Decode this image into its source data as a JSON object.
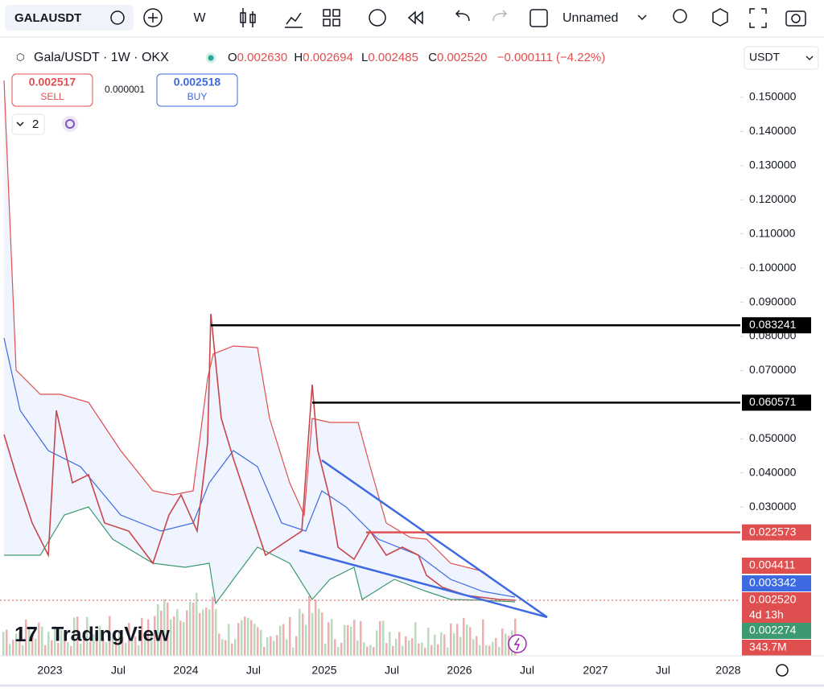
{
  "toolbar": {
    "symbol": "GALAUSDT",
    "interval": "W",
    "layout_name": "Unnamed"
  },
  "legend": {
    "title": "Gala/USDT · 1W · OKX",
    "open_key": "O",
    "open": "0.002630",
    "high_key": "H",
    "high": "0.002694",
    "low_key": "L",
    "low": "0.002485",
    "close_key": "C",
    "close": "0.002520",
    "change": "−0.000111 (−4.22%)"
  },
  "trade": {
    "sell_price": "0.002517",
    "sell": "SELL",
    "spread": "0.000001",
    "buy_price": "0.002518",
    "buy": "BUY"
  },
  "indicators": {
    "count": "2"
  },
  "price_axis": {
    "currency": "USDT",
    "ticks": [
      {
        "value": 0.15,
        "label": "0.150000"
      },
      {
        "value": 0.14,
        "label": "0.140000"
      },
      {
        "value": 0.13,
        "label": "0.130000"
      },
      {
        "value": 0.12,
        "label": "0.120000"
      },
      {
        "value": 0.11,
        "label": "0.110000"
      },
      {
        "value": 0.1,
        "label": "0.100000"
      },
      {
        "value": 0.09,
        "label": "0.090000"
      },
      {
        "value": 0.08,
        "label": "0.080000"
      },
      {
        "value": 0.07,
        "label": "0.070000"
      },
      {
        "value": 0.05,
        "label": "0.050000"
      },
      {
        "value": 0.04,
        "label": "0.040000"
      },
      {
        "value": 0.03,
        "label": "0.030000"
      }
    ],
    "price_lines": [
      {
        "value": 0.083241,
        "label": "0.083241",
        "color": "#000000"
      },
      {
        "value": 0.060571,
        "label": "0.060571",
        "color": "#000000"
      },
      {
        "value": 0.022573,
        "label": "0.022573",
        "color": "#e04f50"
      }
    ],
    "labels": [
      {
        "label": "0.004411",
        "color": "#e04f50"
      },
      {
        "label": "0.003342",
        "color": "#3d6ae0"
      },
      {
        "label": "0.002520",
        "sub": "4d 13h",
        "color": "#e04f50"
      },
      {
        "label": "0.002274",
        "color": "#3d9970"
      },
      {
        "label": "343.7M",
        "color": "#e04f50"
      }
    ]
  },
  "time_axis": {
    "labels": [
      "2023",
      "Jul",
      "2024",
      "Jul",
      "2025",
      "Jul",
      "2026",
      "Jul",
      "2027",
      "Jul",
      "2028"
    ]
  },
  "branding": {
    "watermark": "TradingView"
  }
}
